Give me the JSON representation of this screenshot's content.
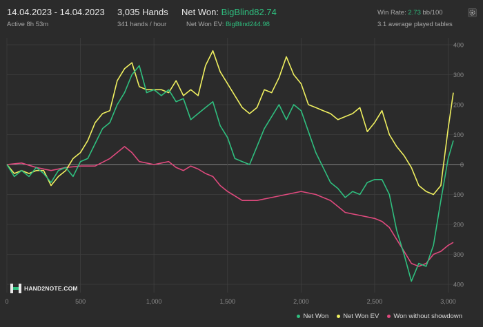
{
  "header": {
    "date_range": "14.04.2023 - 14.04.2023",
    "active": "Active 8h 53m",
    "hands_count": "3,035 Hands",
    "hands_rate": "341 hands / hour",
    "net_won_label": "Net Won:",
    "net_won_value": "BigBlind82.74",
    "net_won_ev_label": "Net Won  EV:",
    "net_won_ev_value": "BigBlind244.98",
    "win_rate_label": "Win Rate:",
    "win_rate_value": "2.73",
    "win_rate_unit": "bb/100",
    "avg_tables": "3.1 average played tables"
  },
  "logo": {
    "text": "HAND2NOTE.COM"
  },
  "icons": {
    "settings": "gear-icon"
  },
  "colors": {
    "net_won": "#2fbf7f",
    "net_won_ev": "#f0f060",
    "won_without_showdown": "#e04a7e",
    "background": "#2b2b2b"
  },
  "chart_data": {
    "type": "line",
    "x_ticks": [
      "0",
      "500",
      "1,000",
      "1,500",
      "2,000",
      "2,500",
      "3,000"
    ],
    "y_ticks": [
      "400",
      "300",
      "200",
      "100",
      "0",
      "100",
      "200",
      "300",
      "400"
    ],
    "xlim": [
      0,
      3035
    ],
    "ylim": [
      -400,
      400
    ],
    "series": [
      {
        "name": "Net Won",
        "color": "#2fbf7f",
        "points": [
          [
            0,
            0
          ],
          [
            50,
            -40
          ],
          [
            100,
            -20
          ],
          [
            150,
            -40
          ],
          [
            200,
            -10
          ],
          [
            250,
            -30
          ],
          [
            300,
            -60
          ],
          [
            350,
            -20
          ],
          [
            400,
            -10
          ],
          [
            450,
            -40
          ],
          [
            500,
            10
          ],
          [
            550,
            20
          ],
          [
            600,
            70
          ],
          [
            650,
            120
          ],
          [
            700,
            140
          ],
          [
            750,
            200
          ],
          [
            800,
            240
          ],
          [
            850,
            300
          ],
          [
            900,
            330
          ],
          [
            950,
            240
          ],
          [
            1000,
            250
          ],
          [
            1050,
            230
          ],
          [
            1100,
            250
          ],
          [
            1150,
            210
          ],
          [
            1200,
            220
          ],
          [
            1250,
            150
          ],
          [
            1300,
            170
          ],
          [
            1350,
            190
          ],
          [
            1400,
            210
          ],
          [
            1450,
            130
          ],
          [
            1500,
            90
          ],
          [
            1550,
            20
          ],
          [
            1600,
            10
          ],
          [
            1650,
            0
          ],
          [
            1700,
            60
          ],
          [
            1750,
            120
          ],
          [
            1800,
            160
          ],
          [
            1850,
            200
          ],
          [
            1900,
            150
          ],
          [
            1950,
            200
          ],
          [
            2000,
            180
          ],
          [
            2050,
            110
          ],
          [
            2100,
            40
          ],
          [
            2150,
            -10
          ],
          [
            2200,
            -60
          ],
          [
            2250,
            -80
          ],
          [
            2300,
            -110
          ],
          [
            2350,
            -90
          ],
          [
            2400,
            -100
          ],
          [
            2450,
            -60
          ],
          [
            2500,
            -50
          ],
          [
            2550,
            -50
          ],
          [
            2600,
            -100
          ],
          [
            2650,
            -220
          ],
          [
            2700,
            -300
          ],
          [
            2750,
            -390
          ],
          [
            2800,
            -330
          ],
          [
            2850,
            -340
          ],
          [
            2900,
            -270
          ],
          [
            2950,
            -120
          ],
          [
            3000,
            20
          ],
          [
            3035,
            80
          ]
        ]
      },
      {
        "name": "Net Won  EV",
        "color": "#f0f060",
        "points": [
          [
            0,
            0
          ],
          [
            50,
            -30
          ],
          [
            100,
            -20
          ],
          [
            150,
            -30
          ],
          [
            200,
            -20
          ],
          [
            250,
            -20
          ],
          [
            300,
            -70
          ],
          [
            350,
            -40
          ],
          [
            400,
            -20
          ],
          [
            450,
            20
          ],
          [
            500,
            40
          ],
          [
            550,
            80
          ],
          [
            600,
            140
          ],
          [
            650,
            170
          ],
          [
            700,
            180
          ],
          [
            750,
            280
          ],
          [
            800,
            320
          ],
          [
            850,
            340
          ],
          [
            900,
            260
          ],
          [
            950,
            250
          ],
          [
            1000,
            250
          ],
          [
            1050,
            250
          ],
          [
            1100,
            240
          ],
          [
            1150,
            280
          ],
          [
            1200,
            230
          ],
          [
            1250,
            250
          ],
          [
            1300,
            230
          ],
          [
            1350,
            330
          ],
          [
            1400,
            380
          ],
          [
            1450,
            310
          ],
          [
            1500,
            270
          ],
          [
            1550,
            230
          ],
          [
            1600,
            190
          ],
          [
            1650,
            170
          ],
          [
            1700,
            190
          ],
          [
            1750,
            250
          ],
          [
            1800,
            240
          ],
          [
            1850,
            290
          ],
          [
            1900,
            360
          ],
          [
            1950,
            300
          ],
          [
            2000,
            270
          ],
          [
            2050,
            200
          ],
          [
            2100,
            190
          ],
          [
            2150,
            180
          ],
          [
            2200,
            170
          ],
          [
            2250,
            150
          ],
          [
            2300,
            160
          ],
          [
            2350,
            170
          ],
          [
            2400,
            190
          ],
          [
            2450,
            110
          ],
          [
            2500,
            140
          ],
          [
            2550,
            180
          ],
          [
            2600,
            100
          ],
          [
            2650,
            60
          ],
          [
            2700,
            30
          ],
          [
            2750,
            -10
          ],
          [
            2800,
            -70
          ],
          [
            2850,
            -90
          ],
          [
            2900,
            -100
          ],
          [
            2950,
            -70
          ],
          [
            3000,
            120
          ],
          [
            3035,
            240
          ]
        ]
      },
      {
        "name": "Won without showdown",
        "color": "#e04a7e",
        "points": [
          [
            0,
            0
          ],
          [
            100,
            5
          ],
          [
            200,
            -10
          ],
          [
            300,
            -20
          ],
          [
            400,
            -10
          ],
          [
            500,
            -5
          ],
          [
            600,
            -5
          ],
          [
            700,
            20
          ],
          [
            800,
            60
          ],
          [
            850,
            40
          ],
          [
            900,
            10
          ],
          [
            1000,
            0
          ],
          [
            1100,
            10
          ],
          [
            1150,
            -10
          ],
          [
            1200,
            -20
          ],
          [
            1250,
            -5
          ],
          [
            1300,
            -15
          ],
          [
            1350,
            -30
          ],
          [
            1400,
            -40
          ],
          [
            1450,
            -70
          ],
          [
            1500,
            -90
          ],
          [
            1600,
            -120
          ],
          [
            1700,
            -120
          ],
          [
            1800,
            -110
          ],
          [
            1900,
            -100
          ],
          [
            2000,
            -90
          ],
          [
            2100,
            -100
          ],
          [
            2150,
            -110
          ],
          [
            2200,
            -120
          ],
          [
            2250,
            -140
          ],
          [
            2300,
            -160
          ],
          [
            2400,
            -170
          ],
          [
            2500,
            -180
          ],
          [
            2550,
            -190
          ],
          [
            2600,
            -210
          ],
          [
            2650,
            -250
          ],
          [
            2700,
            -290
          ],
          [
            2750,
            -330
          ],
          [
            2800,
            -340
          ],
          [
            2850,
            -330
          ],
          [
            2900,
            -300
          ],
          [
            2950,
            -290
          ],
          [
            3000,
            -270
          ],
          [
            3035,
            -260
          ]
        ]
      }
    ]
  }
}
